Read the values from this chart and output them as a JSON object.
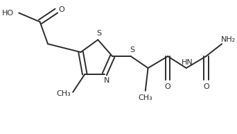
{
  "bg_color": "#ffffff",
  "line_color": "#2b2b2b",
  "line_width": 1.4,
  "figsize": [
    3.42,
    1.93
  ],
  "dpi": 100,
  "xlim": [
    0,
    342
  ],
  "ylim": [
    0,
    193
  ]
}
